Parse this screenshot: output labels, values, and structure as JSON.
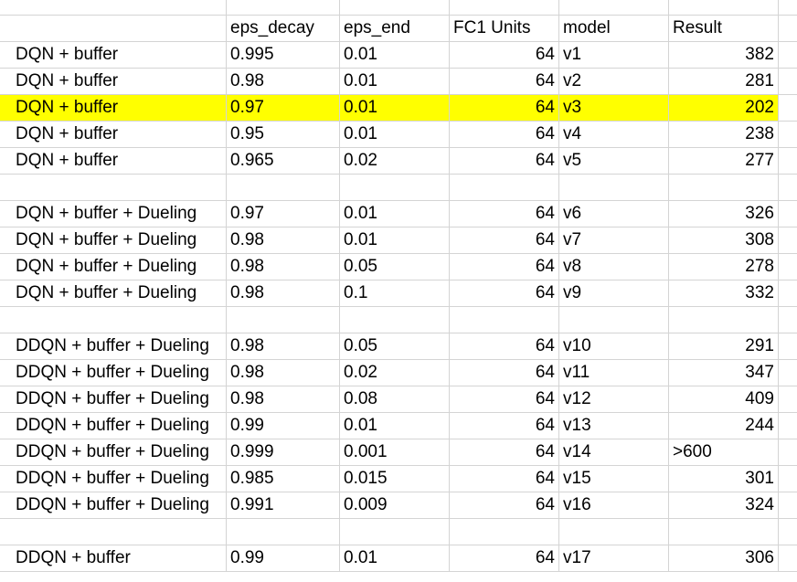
{
  "colors": {
    "highlight": "#ffff00",
    "gridline": "#d4d4d4"
  },
  "header": {
    "eps_decay": "eps_decay",
    "eps_end": "eps_end",
    "fc1_units": "FC1 Units",
    "model": "model",
    "result": "Result"
  },
  "rows": [
    {
      "label": "DQN + buffer",
      "eps_decay": "0.995",
      "eps_end": "0.01",
      "fc1": "64",
      "model": "v1",
      "result": "382"
    },
    {
      "label": "DQN + buffer",
      "eps_decay": "0.98",
      "eps_end": "0.01",
      "fc1": "64",
      "model": "v2",
      "result": "281"
    },
    {
      "label": "DQN + buffer",
      "eps_decay": "0.97",
      "eps_end": "0.01",
      "fc1": "64",
      "model": "v3",
      "result": "202",
      "highlight": true
    },
    {
      "label": "DQN + buffer",
      "eps_decay": "0.95",
      "eps_end": "0.01",
      "fc1": "64",
      "model": "v4",
      "result": "238"
    },
    {
      "label": "DQN + buffer",
      "eps_decay": "0.965",
      "eps_end": "0.02",
      "fc1": "64",
      "model": "v5",
      "result": "277"
    },
    {
      "blank": true
    },
    {
      "label": "DQN + buffer + Dueling",
      "eps_decay": "0.97",
      "eps_end": "0.01",
      "fc1": "64",
      "model": "v6",
      "result": "326"
    },
    {
      "label": "DQN + buffer + Dueling",
      "eps_decay": "0.98",
      "eps_end": "0.01",
      "fc1": "64",
      "model": "v7",
      "result": "308"
    },
    {
      "label": "DQN + buffer + Dueling",
      "eps_decay": "0.98",
      "eps_end": "0.05",
      "fc1": "64",
      "model": "v8",
      "result": "278"
    },
    {
      "label": "DQN + buffer + Dueling",
      "eps_decay": "0.98",
      "eps_end": "0.1",
      "fc1": "64",
      "model": "v9",
      "result": "332"
    },
    {
      "blank": true
    },
    {
      "label": "DDQN + buffer + Dueling",
      "eps_decay": "0.98",
      "eps_end": "0.05",
      "fc1": "64",
      "model": "v10",
      "result": "291"
    },
    {
      "label": "DDQN + buffer + Dueling",
      "eps_decay": "0.98",
      "eps_end": "0.02",
      "fc1": "64",
      "model": "v11",
      "result": "347"
    },
    {
      "label": "DDQN + buffer + Dueling",
      "eps_decay": "0.98",
      "eps_end": "0.08",
      "fc1": "64",
      "model": "v12",
      "result": "409"
    },
    {
      "label": "DDQN + buffer + Dueling",
      "eps_decay": "0.99",
      "eps_end": "0.01",
      "fc1": "64",
      "model": "v13",
      "result": "244"
    },
    {
      "label": "DDQN + buffer + Dueling",
      "eps_decay": "0.999",
      "eps_end": "0.001",
      "fc1": "64",
      "model": "v14",
      "result": ">600",
      "result_align_left": true
    },
    {
      "label": "DDQN + buffer + Dueling",
      "eps_decay": "0.985",
      "eps_end": "0.015",
      "fc1": "64",
      "model": "v15",
      "result": "301"
    },
    {
      "label": "DDQN + buffer + Dueling",
      "eps_decay": "0.991",
      "eps_end": "0.009",
      "fc1": "64",
      "model": "v16",
      "result": "324"
    },
    {
      "blank": true
    },
    {
      "label": "DDQN + buffer",
      "eps_decay": "0.99",
      "eps_end": "0.01",
      "fc1": "64",
      "model": "v17",
      "result": "306"
    }
  ]
}
